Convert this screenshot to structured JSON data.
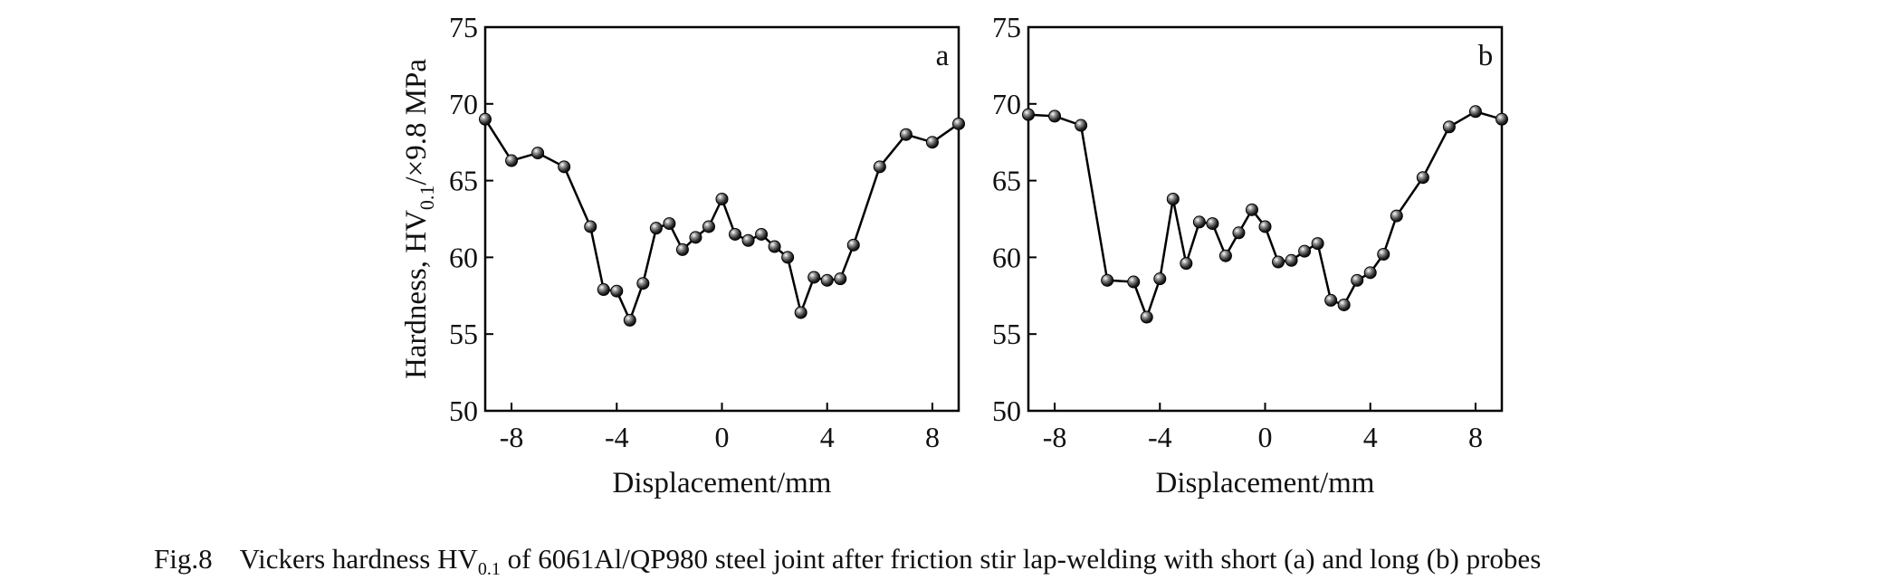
{
  "caption": {
    "fig": "Fig.8",
    "pre": "Vickers hardness HV",
    "sub": "0.1",
    "post": " of 6061Al/QP980 steel joint after friction stir lap-welding with short (a) and long (b) probes"
  },
  "chart_data": [
    {
      "type": "line",
      "panel_label": "a",
      "xlabel": "Displacement/mm",
      "ylabel": {
        "main": "Hardness, HV",
        "sub": "0.1",
        "rest": "/×9.8 MPa"
      },
      "xlim": [
        -9,
        9
      ],
      "ylim": [
        50,
        75
      ],
      "xticks": [
        -8,
        -4,
        0,
        4,
        8
      ],
      "yticks": [
        50,
        55,
        60,
        65,
        70,
        75
      ],
      "marker": "sphere",
      "series": [
        {
          "x": [
            -9,
            -8,
            -7,
            -6,
            -5,
            -4.5,
            -4,
            -3.5,
            -3,
            -2.5,
            -2,
            -1.5,
            -1,
            -0.5,
            0,
            0.5,
            1,
            1.5,
            2,
            2.5,
            3,
            3.5,
            4,
            4.5,
            5,
            6,
            7,
            8,
            9
          ],
          "y": [
            69,
            66.3,
            66.8,
            65.9,
            62,
            57.9,
            57.8,
            55.9,
            58.3,
            61.9,
            62.2,
            60.5,
            61.3,
            62,
            63.8,
            61.5,
            61.1,
            61.5,
            60.7,
            60,
            56.4,
            58.7,
            58.5,
            58.6,
            60.8,
            65.9,
            68,
            67.5,
            68.7
          ]
        }
      ]
    },
    {
      "type": "line",
      "panel_label": "b",
      "xlabel": "Displacement/mm",
      "xlim": [
        -9,
        9
      ],
      "ylim": [
        50,
        75
      ],
      "xticks": [
        -8,
        -4,
        0,
        4,
        8
      ],
      "yticks": [
        50,
        55,
        60,
        65,
        70,
        75
      ],
      "marker": "sphere",
      "series": [
        {
          "x": [
            -9,
            -8,
            -7,
            -6,
            -5,
            -4.5,
            -4,
            -3.5,
            -3,
            -2.5,
            -2,
            -1.5,
            -1,
            -0.5,
            0,
            0.5,
            1,
            1.5,
            2,
            2.5,
            3,
            3.5,
            4,
            4.5,
            5,
            6,
            7,
            8,
            9
          ],
          "y": [
            69.3,
            69.2,
            68.6,
            58.5,
            58.4,
            56.1,
            58.6,
            63.8,
            59.6,
            62.3,
            62.2,
            60.1,
            61.6,
            63.1,
            62,
            59.7,
            59.8,
            60.4,
            60.9,
            57.2,
            56.9,
            58.5,
            59,
            60.2,
            62.7,
            65.2,
            68.5,
            69.5,
            69
          ]
        }
      ]
    }
  ]
}
